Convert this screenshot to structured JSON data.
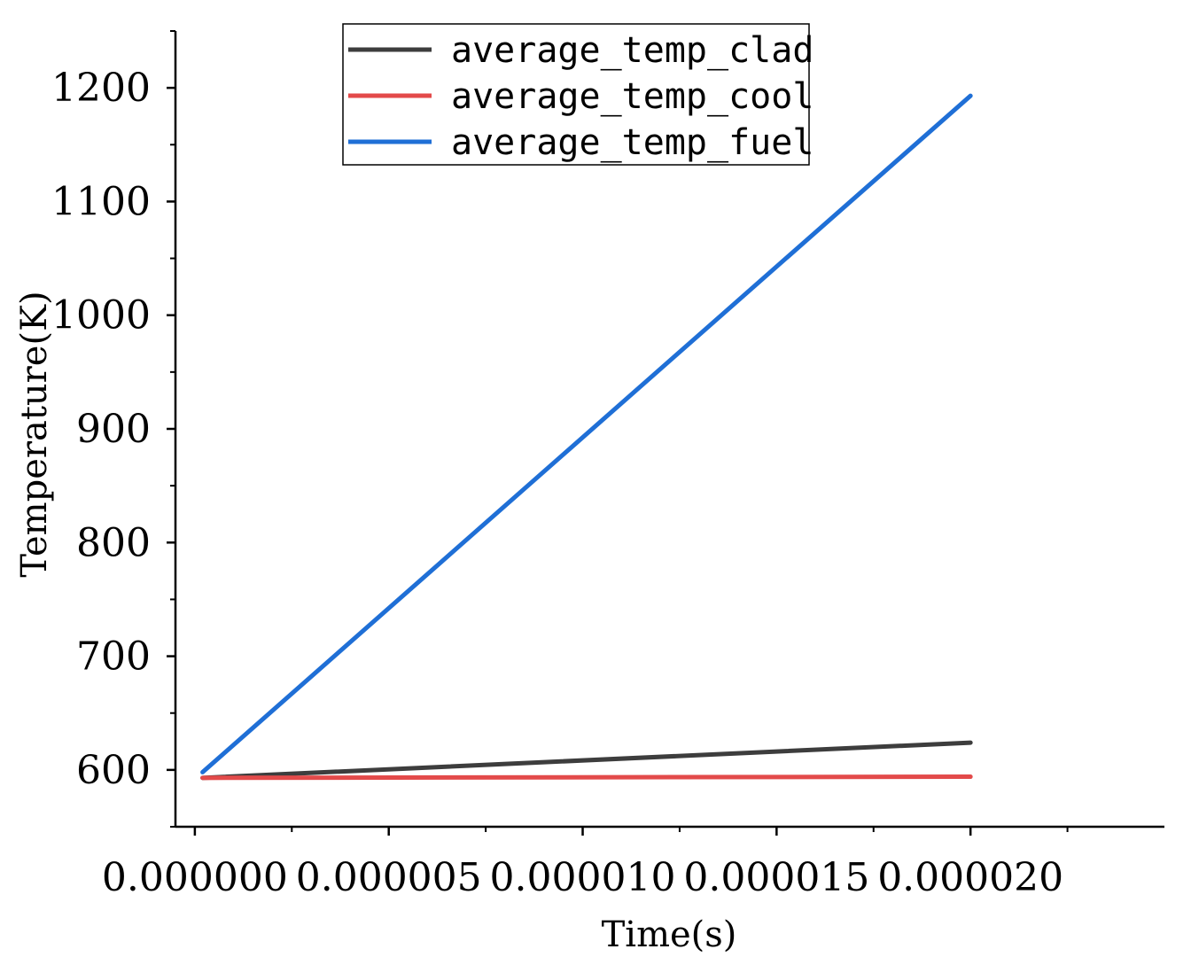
{
  "chart_data": {
    "type": "line",
    "title": "",
    "xlabel": "Time(s)",
    "ylabel": "Temperature(K)",
    "xlim": [
      -5e-07,
      2.5e-05
    ],
    "ylim": [
      550,
      1250
    ],
    "x_ticks": [
      0,
      5e-06,
      1e-05,
      1.5e-05,
      2e-05
    ],
    "x_tick_labels": [
      "0.000000",
      "0.000005",
      "0.000010",
      "0.000015",
      "0.000020"
    ],
    "y_ticks": [
      600,
      700,
      800,
      900,
      1000,
      1100,
      1200
    ],
    "y_tick_labels": [
      "600",
      "700",
      "800",
      "900",
      "1000",
      "1100",
      "1200"
    ],
    "grid": false,
    "legend_position": "top",
    "series": [
      {
        "name": "average_temp_clad",
        "color": "#3d3d3d",
        "x": [
          2e-07,
          2e-05
        ],
        "y": [
          593,
          624
        ]
      },
      {
        "name": "average_temp_cool",
        "color": "#e34a4a",
        "x": [
          2e-07,
          2e-05
        ],
        "y": [
          593,
          594
        ]
      },
      {
        "name": "average_temp_fuel",
        "color": "#1f6fd6",
        "x": [
          2e-07,
          2e-05
        ],
        "y": [
          598,
          1193
        ]
      }
    ]
  }
}
